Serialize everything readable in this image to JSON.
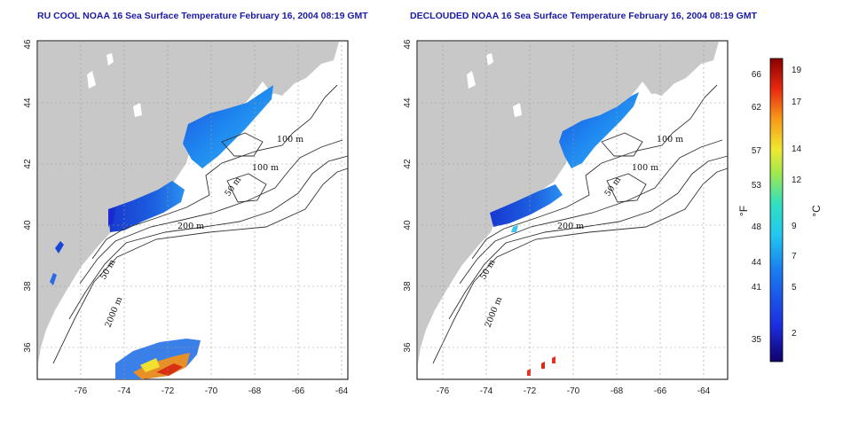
{
  "panels": [
    {
      "id": "left",
      "title": "RU COOL NOAA 16 Sea Surface Temperature February 16, 2004 08:19 GMT",
      "contour_labels": [
        "100 m",
        "100 m",
        "50 m",
        "200 m",
        "50 m",
        "2000 m"
      ]
    },
    {
      "id": "right",
      "title": "DECLOUDED NOAA 16 Sea Surface Temperature February 16, 2004 08:19 GMT",
      "contour_labels": [
        "100 m",
        "100 m",
        "50 m",
        "200 m",
        "50 m",
        "2000 m"
      ]
    }
  ],
  "axes": {
    "x_ticks": [
      "-76",
      "-74",
      "-72",
      "-70",
      "-68",
      "-66",
      "-64"
    ],
    "y_ticks": [
      "36",
      "38",
      "40",
      "42",
      "44",
      "46"
    ]
  },
  "colorbar": {
    "fahrenheit_label": "°F",
    "celsius_label": "°C",
    "fahrenheit_ticks": [
      "66",
      "62",
      "57",
      "53",
      "48",
      "44",
      "41",
      "35"
    ],
    "celsius_ticks": [
      "19",
      "17",
      "14",
      "12",
      "9",
      "7",
      "5",
      "2"
    ]
  },
  "colors": {
    "land": "#c8c8c8",
    "water": "#ffffff",
    "title": "#1a1aa6",
    "sst_cold": "#1a40d8",
    "sst_mid": "#2aa0f0",
    "sst_warm": "#e03010"
  }
}
